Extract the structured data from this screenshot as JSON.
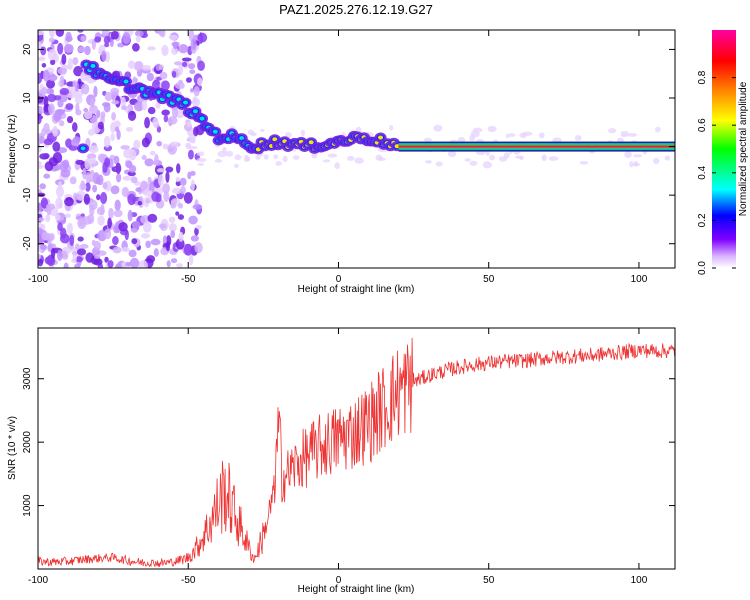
{
  "title": "PAZ1.2025.276.12.19.G27",
  "chart_data": [
    {
      "type": "heatmap",
      "title": "PAZ1.2025.276.12.19.G27",
      "xlabel": "Height of straight line (km)",
      "ylabel": "Frequency (Hz)",
      "xlim": [
        -100,
        112
      ],
      "ylim": [
        -25,
        24
      ],
      "xticks": [
        -100,
        -50,
        0,
        50,
        100
      ],
      "yticks": [
        -20,
        -10,
        0,
        10,
        20
      ],
      "colorbar": {
        "label": "Normalized spectral amplitude",
        "range": [
          0,
          1
        ],
        "ticks": [
          0.0,
          0.2,
          0.4,
          0.6,
          0.8
        ],
        "tick_labels": [
          "0.0",
          "0.2",
          "0.4",
          "0.6",
          "0.8"
        ],
        "colors": [
          "#ffffff",
          "#d9b3ff",
          "#8000ff",
          "#0000ff",
          "#00ffff",
          "#00ff00",
          "#ffff00",
          "#ff8000",
          "#ff0000",
          "#ff00a0"
        ]
      },
      "ridge": {
        "points": [
          {
            "x": -84,
            "y": 17
          },
          {
            "x": -78,
            "y": 14
          },
          {
            "x": -72,
            "y": 13
          },
          {
            "x": -52,
            "y": 9
          },
          {
            "x": -45,
            "y": 5
          },
          {
            "x": -40,
            "y": 2
          },
          {
            "x": -35,
            "y": 2
          },
          {
            "x": -28,
            "y": 0
          },
          {
            "x": -20,
            "y": 1
          },
          {
            "x": -10,
            "y": 0
          },
          {
            "x": 0,
            "y": 1
          },
          {
            "x": 8,
            "y": 2
          },
          {
            "x": 15,
            "y": 1
          },
          {
            "x": 20,
            "y": 0
          },
          {
            "x": 112,
            "y": 0
          }
        ]
      }
    },
    {
      "type": "line",
      "xlabel": "Height of straight line (km)",
      "ylabel": "SNR (10 * v/v)",
      "xlim": [
        -100,
        112
      ],
      "ylim": [
        0,
        3800
      ],
      "xticks": [
        -100,
        -50,
        0,
        50,
        100
      ],
      "yticks": [
        1000,
        2000,
        3000
      ],
      "series": [
        {
          "name": "SNR",
          "color": "#ee3333",
          "x": [
            -100,
            -95,
            -90,
            -85,
            -80,
            -75,
            -70,
            -65,
            -60,
            -55,
            -50,
            -47,
            -44,
            -41,
            -38,
            -36,
            -34,
            -32,
            -30,
            -28,
            -26,
            -24,
            -22,
            -20,
            -18,
            -15,
            -10,
            -5,
            0,
            5,
            10,
            15,
            20,
            25,
            30,
            35,
            40,
            45,
            50,
            55,
            60,
            65,
            70,
            75,
            80,
            85,
            90,
            95,
            100,
            105,
            112
          ],
          "values": [
            120,
            110,
            120,
            150,
            170,
            180,
            130,
            100,
            90,
            110,
            180,
            350,
            600,
            900,
            1250,
            1050,
            800,
            600,
            350,
            150,
            400,
            700,
            1100,
            1400,
            1450,
            1600,
            1800,
            1950,
            2050,
            2150,
            2300,
            2550,
            2800,
            2950,
            3050,
            3120,
            3180,
            3220,
            3250,
            3270,
            3280,
            3300,
            3330,
            3340,
            3360,
            3370,
            3400,
            3420,
            3450,
            3440,
            3440
          ]
        }
      ]
    }
  ]
}
